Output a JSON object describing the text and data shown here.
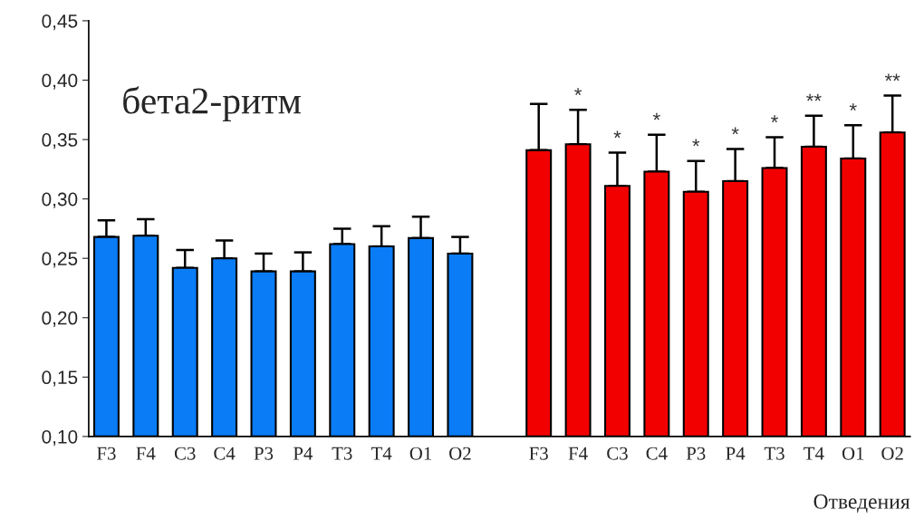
{
  "chart_data": {
    "type": "bar",
    "title": "бета2-ритм",
    "xlabel": "Отведения",
    "categories": [
      "F3",
      "F4",
      "C3",
      "C4",
      "P3",
      "P4",
      "T3",
      "T4",
      "O1",
      "O2",
      null,
      "F3",
      "F4",
      "C3",
      "C4",
      "P3",
      "P4",
      "T3",
      "T4",
      "O1",
      "O2"
    ],
    "values": [
      0.268,
      0.269,
      0.242,
      0.25,
      0.239,
      0.239,
      0.262,
      0.26,
      0.267,
      0.254,
      null,
      0.341,
      0.346,
      0.311,
      0.323,
      0.306,
      0.315,
      0.326,
      0.344,
      0.334,
      0.356
    ],
    "errors": [
      [
        0.268,
        0.282
      ],
      [
        0.269,
        0.283
      ],
      [
        0.242,
        0.257
      ],
      [
        0.25,
        0.265
      ],
      [
        0.239,
        0.254
      ],
      [
        0.239,
        0.255
      ],
      [
        0.262,
        0.275
      ],
      [
        0.26,
        0.277
      ],
      [
        0.267,
        0.285
      ],
      [
        0.254,
        0.268
      ],
      null,
      [
        0.341,
        0.38
      ],
      [
        0.346,
        0.375
      ],
      [
        0.311,
        0.339
      ],
      [
        0.323,
        0.354
      ],
      [
        0.306,
        0.332
      ],
      [
        0.315,
        0.342
      ],
      [
        0.326,
        0.352
      ],
      [
        0.344,
        0.37
      ],
      [
        0.334,
        0.362
      ],
      [
        0.356,
        0.387
      ]
    ],
    "value_labels": [
      null,
      null,
      null,
      null,
      null,
      null,
      null,
      null,
      null,
      null,
      null,
      null,
      "*",
      "*",
      "*",
      "*",
      "*",
      "*",
      "**",
      "*",
      "**"
    ],
    "colors": [
      "#0a7cf5",
      "#0a7cf5",
      "#0a7cf5",
      "#0a7cf5",
      "#0a7cf5",
      "#0a7cf5",
      "#0a7cf5",
      "#0a7cf5",
      "#0a7cf5",
      "#0a7cf5",
      "#ffffff",
      "#f20000",
      "#f20000",
      "#f20000",
      "#f20000",
      "#f20000",
      "#f20000",
      "#f20000",
      "#f20000",
      "#f20000",
      "#f20000"
    ],
    "ylim": [
      0.1,
      0.45
    ],
    "yticks": [
      {
        "value": 0.1,
        "label": "0,10"
      },
      {
        "value": 0.15,
        "label": "0,15"
      },
      {
        "value": 0.2,
        "label": "0,20"
      },
      {
        "value": 0.25,
        "label": "0,25"
      },
      {
        "value": 0.3,
        "label": "0,30"
      },
      {
        "value": 0.35,
        "label": "0,35"
      },
      {
        "value": 0.4,
        "label": "0,40"
      },
      {
        "value": 0.45,
        "label": "0,45"
      }
    ],
    "grid": false,
    "legend": false
  }
}
